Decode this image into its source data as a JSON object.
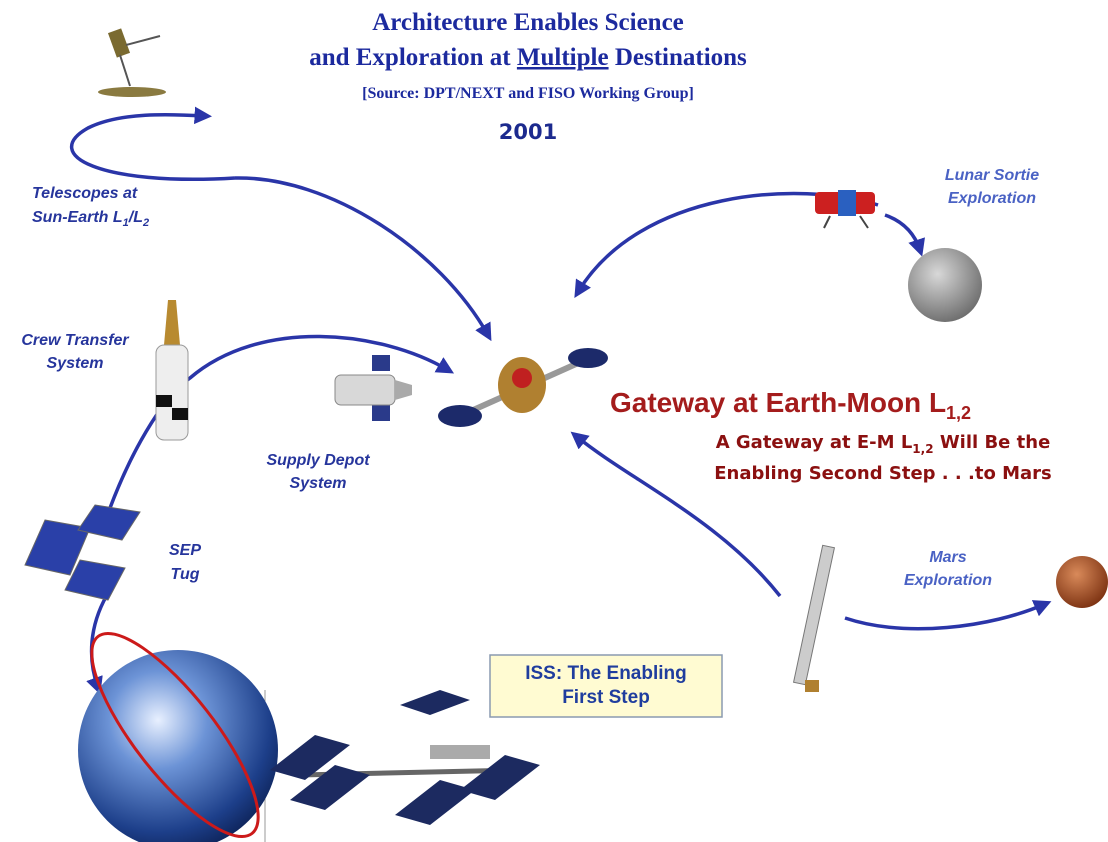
{
  "header": {
    "title_line1": "Architecture Enables Science",
    "title_line2": {
      "before": "and Exploration at ",
      "underlined": "Multiple",
      "after": " Destinations"
    },
    "source": "[Source: DPT/NEXT and FISO Working Group]",
    "year": "2001"
  },
  "labels": {
    "telescopes": {
      "line1": "Telescopes at",
      "line2": {
        "a": "Sun-Earth L",
        "sub_a": "1",
        "b": "/L",
        "sub_b": "2"
      }
    },
    "lunar": {
      "line1": "Lunar Sortie",
      "line2": "Exploration"
    },
    "crew": {
      "line1": "Crew Transfer",
      "line2": "System"
    },
    "depot": {
      "line1": "Supply Depot",
      "line2": "System"
    },
    "sep": {
      "line1": "SEP",
      "line2": "Tug"
    },
    "mars": {
      "line1": "Mars",
      "line2": "Exploration"
    }
  },
  "gateway": {
    "title": {
      "text": "Gateway at Earth-Moon L",
      "sub": "1,2"
    },
    "subtitle_line1": {
      "a": "A Gateway at E-M L",
      "sub": "1,2",
      "b": " Will Be the"
    },
    "subtitle_line2": "Enabling Second Step . . .to Mars"
  },
  "iss": {
    "line1": "ISS: The Enabling",
    "line2": "First Step"
  }
}
